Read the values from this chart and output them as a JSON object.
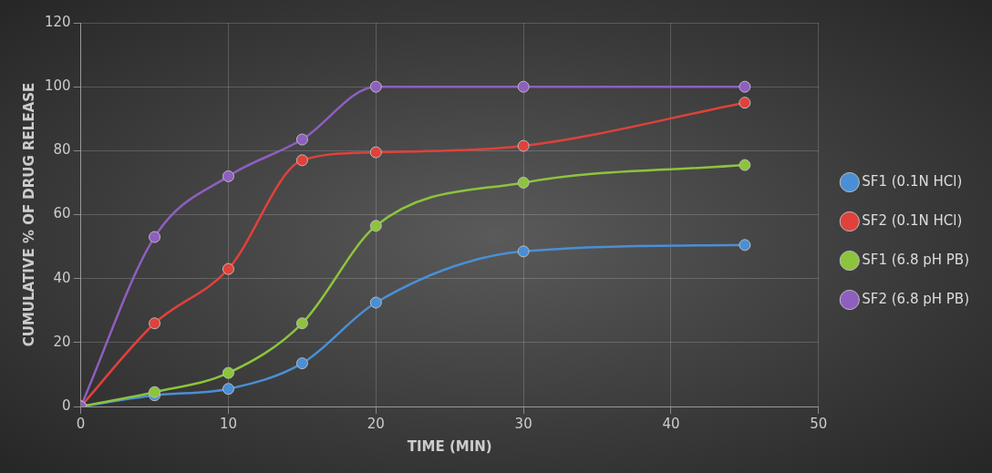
{
  "chart_data": {
    "type": "line",
    "xlabel": "TIME (MIN)",
    "ylabel": "CUMULATIVE % OF DRUG RELEASE",
    "x": [
      0,
      5,
      10,
      15,
      20,
      30,
      45
    ],
    "series": [
      {
        "name": "SF1 (0.1N HCl)",
        "color": "#4a8fd6",
        "values": [
          0,
          3.5,
          5.5,
          13.5,
          32.5,
          48.5,
          50.5
        ]
      },
      {
        "name": "SF2 (0.1N HCl)",
        "color": "#e0413b",
        "values": [
          0,
          26,
          43,
          77,
          79.5,
          81.5,
          95
        ]
      },
      {
        "name": "SF1 (6.8 pH PB)",
        "color": "#8cc43c",
        "values": [
          0,
          4.5,
          10.5,
          26,
          56.5,
          70,
          75.5
        ]
      },
      {
        "name": "SF2 (6.8 pH PB)",
        "color": "#8e5fbf",
        "values": [
          0,
          53,
          72,
          83.5,
          100,
          100,
          100
        ]
      }
    ],
    "xlim": [
      0,
      50
    ],
    "xticks": [
      0,
      10,
      20,
      30,
      40,
      50
    ],
    "ylim": [
      0,
      120
    ],
    "yticks": [
      0,
      20,
      40,
      60,
      80,
      100,
      120
    ],
    "grid": true,
    "legend": "right",
    "marker": "circle",
    "line_style": "solid"
  }
}
